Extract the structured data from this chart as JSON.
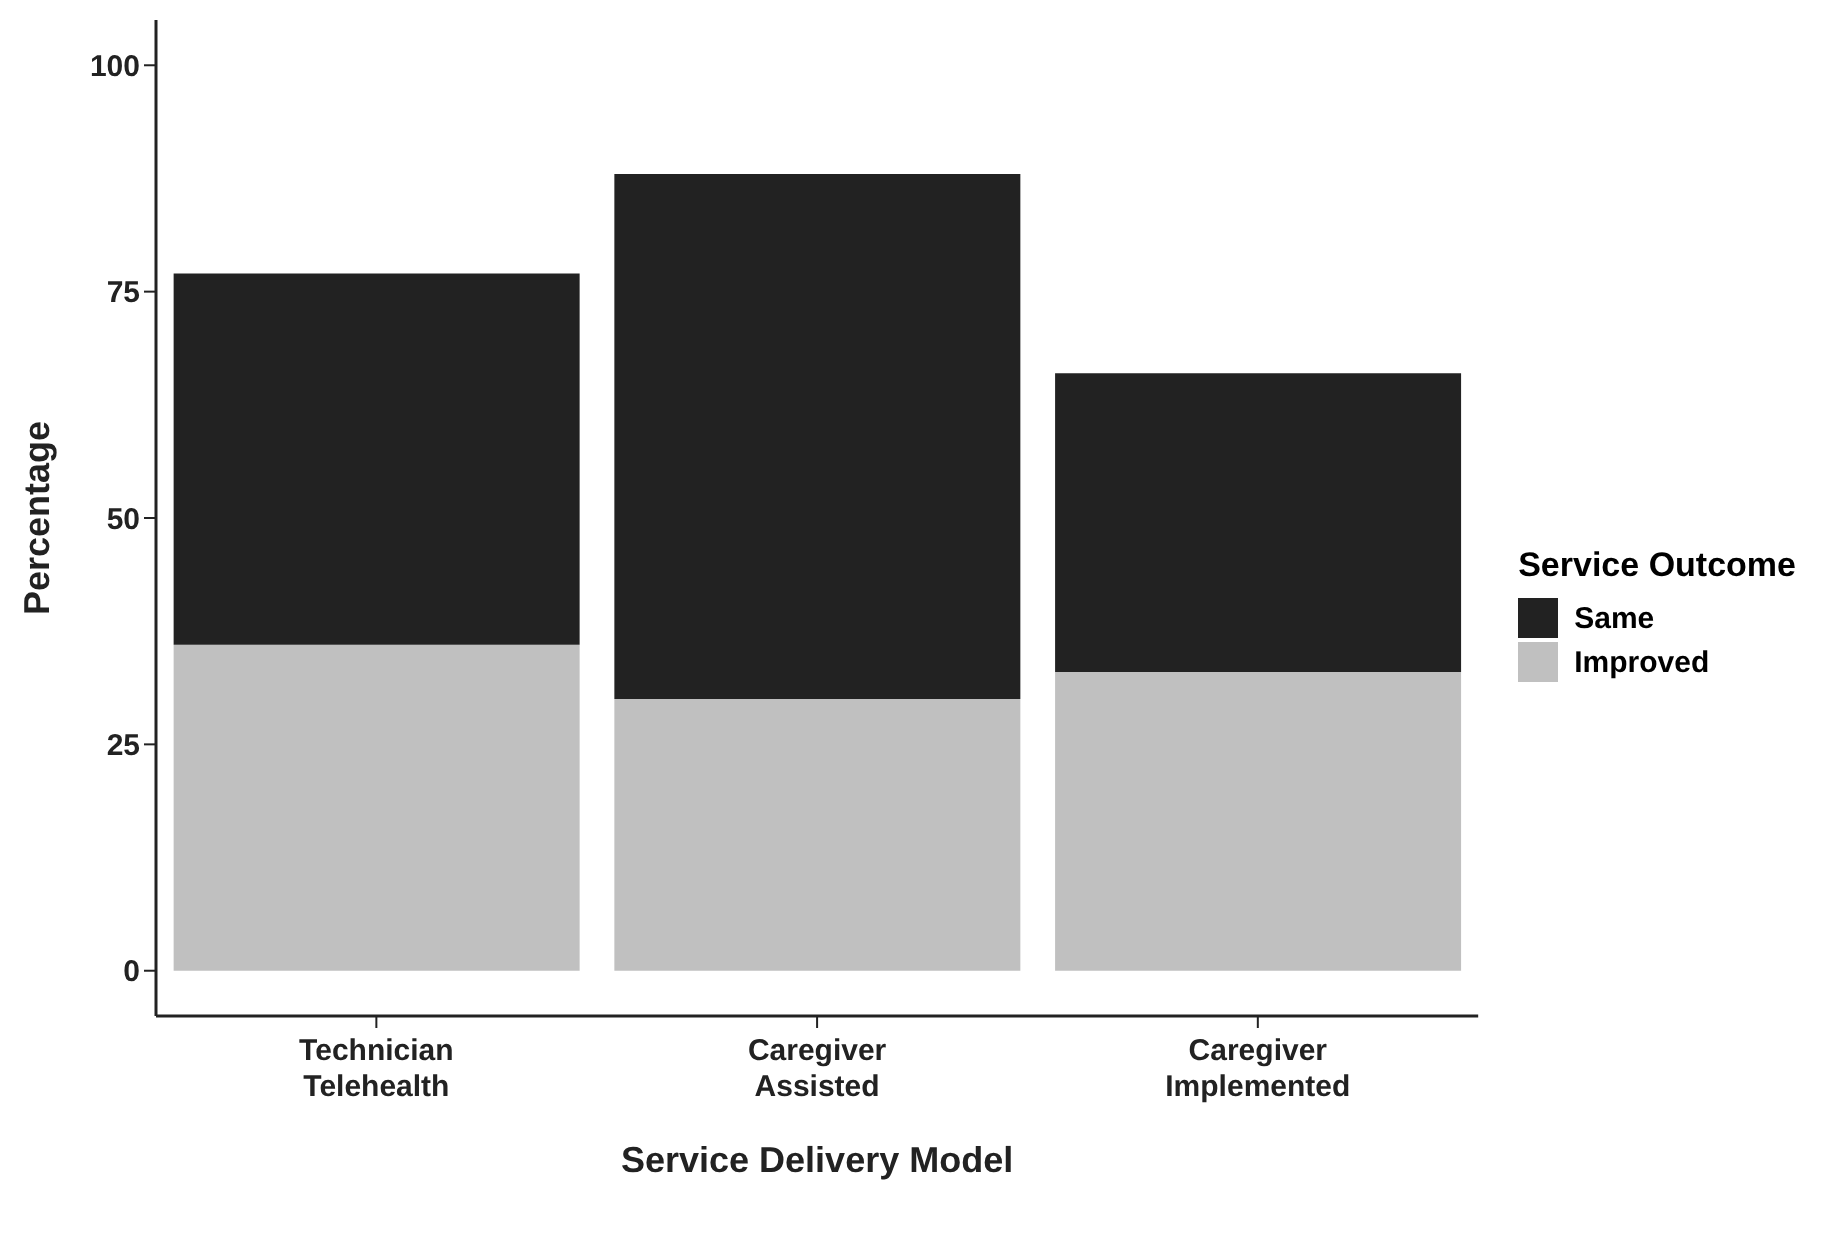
{
  "chart_data": {
    "type": "bar",
    "stacked": true,
    "xlabel": "Service Delivery Model",
    "ylabel": "Percentage",
    "legend_title": "Service Outcome",
    "categories": [
      "Technician Telehealth",
      "Caregiver Assisted",
      "Caregiver Implemented"
    ],
    "series": [
      {
        "name": "Improved",
        "color": "#c0c0c0",
        "values": [
          36,
          30,
          33
        ]
      },
      {
        "name": "Same",
        "color": "#222222",
        "values": [
          41,
          58,
          33
        ]
      }
    ],
    "ylim": [
      -5,
      105
    ],
    "yticks": [
      0,
      25,
      50,
      75,
      100
    ],
    "grid": false,
    "legend": "right"
  }
}
